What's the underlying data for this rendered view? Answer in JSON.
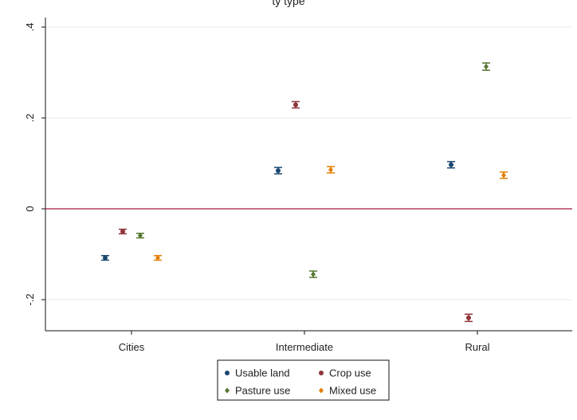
{
  "chart_data": {
    "type": "scatter",
    "title": "",
    "xlabel": "",
    "ylabel": "",
    "categories": [
      "Cities",
      "Intermediate",
      "Rural"
    ],
    "ylim": [
      -0.27,
      0.42
    ],
    "yticks": [
      -0.2,
      0,
      0.2,
      0.4
    ],
    "ytick_labels": [
      "-.2",
      "0",
      ".2",
      ".4"
    ],
    "reference_line": {
      "y": 0,
      "color": "#a6183e"
    },
    "grid": true,
    "legend_position": "bottom",
    "series": [
      {
        "name": "Usable land",
        "color": "#1a476f",
        "marker": "circle",
        "points": [
          {
            "category": "Cities",
            "y": -0.108,
            "lo": -0.113,
            "hi": -0.103
          },
          {
            "category": "Intermediate",
            "y": 0.084,
            "lo": 0.077,
            "hi": 0.091
          },
          {
            "category": "Rural",
            "y": 0.097,
            "lo": 0.09,
            "hi": 0.104
          }
        ]
      },
      {
        "name": "Crop use",
        "color": "#90353b",
        "marker": "circle",
        "points": [
          {
            "category": "Cities",
            "y": -0.05,
            "lo": -0.055,
            "hi": -0.045
          },
          {
            "category": "Intermediate",
            "y": 0.229,
            "lo": 0.222,
            "hi": 0.236
          },
          {
            "category": "Rural",
            "y": -0.24,
            "lo": -0.248,
            "hi": -0.232
          }
        ]
      },
      {
        "name": "Pasture use",
        "color": "#55752f",
        "marker": "diamond",
        "points": [
          {
            "category": "Cities",
            "y": -0.059,
            "lo": -0.064,
            "hi": -0.054
          },
          {
            "category": "Intermediate",
            "y": -0.144,
            "lo": -0.151,
            "hi": -0.137
          },
          {
            "category": "Rural",
            "y": 0.313,
            "lo": 0.305,
            "hi": 0.321
          }
        ]
      },
      {
        "name": "Mixed use",
        "color": "#e37e00",
        "marker": "diamond",
        "points": [
          {
            "category": "Cities",
            "y": -0.108,
            "lo": -0.113,
            "hi": -0.103
          },
          {
            "category": "Intermediate",
            "y": 0.086,
            "lo": 0.079,
            "hi": 0.093
          },
          {
            "category": "Rural",
            "y": 0.074,
            "lo": 0.067,
            "hi": 0.081
          }
        ]
      }
    ],
    "partial_title_visible": "ty type"
  }
}
